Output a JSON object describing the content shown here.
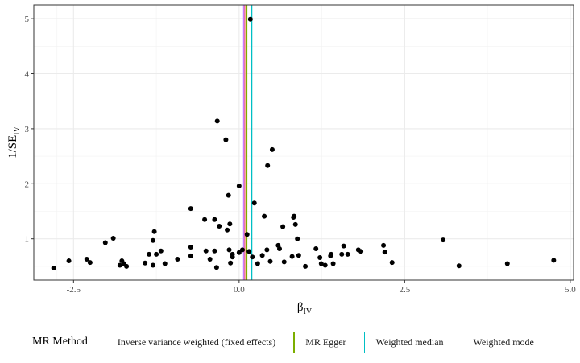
{
  "chart_data": {
    "type": "scatter",
    "title": "",
    "xlabel": "β",
    "xlabel_sub": "IV",
    "ylabel": "1/SE",
    "ylabel_sub": "IV",
    "xlim": [
      -3.1,
      5.05
    ],
    "ylim": [
      0.25,
      5.25
    ],
    "x_ticks": [
      -2.5,
      0.0,
      2.5,
      5.0
    ],
    "x_tick_labels": [
      "-2.5",
      "0.0",
      "2.5",
      "5.0"
    ],
    "y_ticks": [
      1,
      2,
      3,
      4,
      5
    ],
    "y_tick_labels": [
      "1",
      "2",
      "3",
      "4",
      "5"
    ],
    "grid": true,
    "legend_position": "bottom",
    "points": [
      {
        "x": -2.8,
        "y": 0.47
      },
      {
        "x": -2.57,
        "y": 0.6
      },
      {
        "x": -2.3,
        "y": 0.63
      },
      {
        "x": -2.25,
        "y": 0.57
      },
      {
        "x": -2.02,
        "y": 0.93
      },
      {
        "x": -1.9,
        "y": 1.01
      },
      {
        "x": -1.8,
        "y": 0.52
      },
      {
        "x": -1.77,
        "y": 0.6
      },
      {
        "x": -1.74,
        "y": 0.55
      },
      {
        "x": -1.7,
        "y": 0.5
      },
      {
        "x": -1.42,
        "y": 0.56
      },
      {
        "x": -1.36,
        "y": 0.72
      },
      {
        "x": -1.3,
        "y": 0.97
      },
      {
        "x": -1.28,
        "y": 1.13
      },
      {
        "x": -1.3,
        "y": 0.52
      },
      {
        "x": -1.25,
        "y": 0.72
      },
      {
        "x": -1.18,
        "y": 0.78
      },
      {
        "x": -1.12,
        "y": 0.55
      },
      {
        "x": -0.93,
        "y": 0.63
      },
      {
        "x": -0.73,
        "y": 0.85
      },
      {
        "x": -0.73,
        "y": 0.69
      },
      {
        "x": -0.73,
        "y": 1.55
      },
      {
        "x": -0.52,
        "y": 1.35
      },
      {
        "x": -0.5,
        "y": 0.78
      },
      {
        "x": -0.44,
        "y": 0.63
      },
      {
        "x": -0.37,
        "y": 1.35
      },
      {
        "x": -0.37,
        "y": 0.78
      },
      {
        "x": -0.34,
        "y": 0.48
      },
      {
        "x": -0.3,
        "y": 1.23
      },
      {
        "x": -0.33,
        "y": 3.14
      },
      {
        "x": -0.2,
        "y": 2.8
      },
      {
        "x": -0.18,
        "y": 1.16
      },
      {
        "x": -0.16,
        "y": 1.79
      },
      {
        "x": -0.14,
        "y": 1.27
      },
      {
        "x": -0.15,
        "y": 0.8
      },
      {
        "x": -0.13,
        "y": 0.56
      },
      {
        "x": -0.1,
        "y": 0.72
      },
      {
        "x": -0.1,
        "y": 0.67
      },
      {
        "x": 0.0,
        "y": 1.96
      },
      {
        "x": 0.0,
        "y": 0.75
      },
      {
        "x": 0.05,
        "y": 0.8
      },
      {
        "x": 0.12,
        "y": 1.08
      },
      {
        "x": 0.17,
        "y": 4.99
      },
      {
        "x": 0.15,
        "y": 0.77
      },
      {
        "x": 0.2,
        "y": 0.67
      },
      {
        "x": 0.23,
        "y": 1.65
      },
      {
        "x": 0.28,
        "y": 0.55
      },
      {
        "x": 0.35,
        "y": 0.7
      },
      {
        "x": 0.38,
        "y": 1.41
      },
      {
        "x": 0.42,
        "y": 0.8
      },
      {
        "x": 0.43,
        "y": 2.33
      },
      {
        "x": 0.47,
        "y": 0.59
      },
      {
        "x": 0.5,
        "y": 2.62
      },
      {
        "x": 0.59,
        "y": 0.88
      },
      {
        "x": 0.61,
        "y": 0.82
      },
      {
        "x": 0.66,
        "y": 1.22
      },
      {
        "x": 0.68,
        "y": 0.58
      },
      {
        "x": 0.8,
        "y": 0.68
      },
      {
        "x": 0.82,
        "y": 1.39
      },
      {
        "x": 0.83,
        "y": 1.41
      },
      {
        "x": 0.85,
        "y": 1.26
      },
      {
        "x": 0.88,
        "y": 1.0
      },
      {
        "x": 0.9,
        "y": 0.7
      },
      {
        "x": 1.0,
        "y": 0.5
      },
      {
        "x": 1.16,
        "y": 0.82
      },
      {
        "x": 1.22,
        "y": 0.66
      },
      {
        "x": 1.24,
        "y": 0.55
      },
      {
        "x": 1.3,
        "y": 0.52
      },
      {
        "x": 1.38,
        "y": 0.69
      },
      {
        "x": 1.39,
        "y": 0.72
      },
      {
        "x": 1.42,
        "y": 0.55
      },
      {
        "x": 1.55,
        "y": 0.72
      },
      {
        "x": 1.58,
        "y": 0.87
      },
      {
        "x": 1.64,
        "y": 0.72
      },
      {
        "x": 1.8,
        "y": 0.8
      },
      {
        "x": 1.84,
        "y": 0.77
      },
      {
        "x": 2.18,
        "y": 0.88
      },
      {
        "x": 2.2,
        "y": 0.76
      },
      {
        "x": 2.31,
        "y": 0.57
      },
      {
        "x": 3.08,
        "y": 0.98
      },
      {
        "x": 3.32,
        "y": 0.51
      },
      {
        "x": 4.05,
        "y": 0.55
      },
      {
        "x": 4.75,
        "y": 0.61
      }
    ],
    "series": [
      {
        "name": "Inverse variance weighted (fixed effects)",
        "color": "#F8766D",
        "x_intercept": 0.085
      },
      {
        "name": "MR Egger",
        "color": "#7CAE00",
        "x_intercept": 0.115
      },
      {
        "name": "Weighted median",
        "color": "#00BFC4",
        "x_intercept": 0.19
      },
      {
        "name": "Weighted mode",
        "color": "#C77CFF",
        "x_intercept": 0.07
      }
    ],
    "legend_title": "MR Method"
  }
}
